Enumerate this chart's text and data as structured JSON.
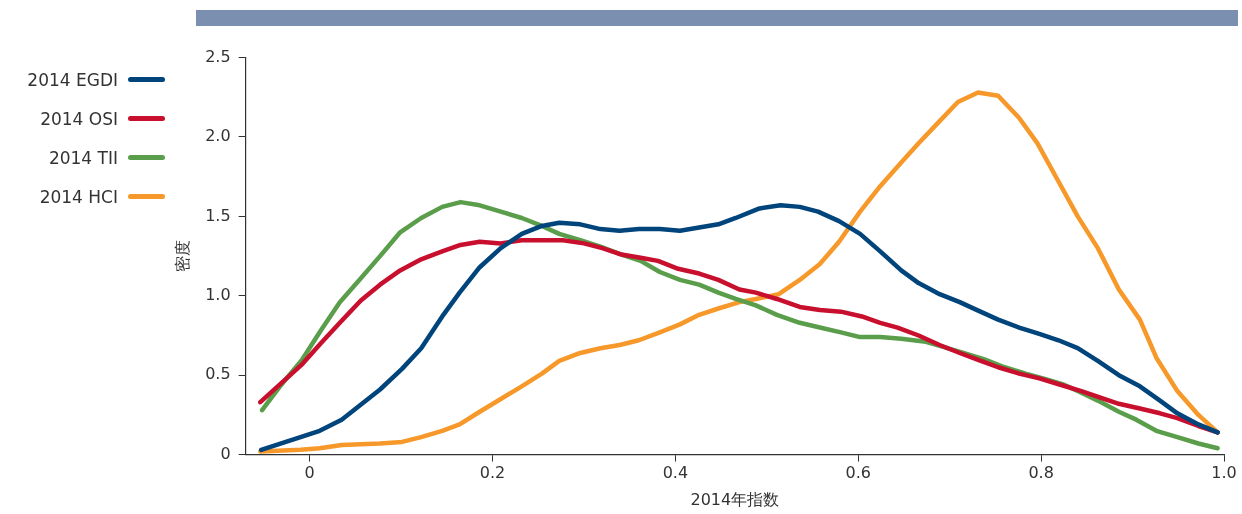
{
  "chart_data": {
    "type": "line",
    "xlabel": "2014年指数",
    "ylabel": "密度",
    "legend": "left",
    "grid": false,
    "marker": "none",
    "line_style": "solid",
    "xlim": [
      -0.07,
      1.0
    ],
    "xticks": [
      0,
      0.2,
      0.4,
      0.6,
      0.8,
      {
        "value": 1.0,
        "label": "1.0"
      }
    ],
    "ylim": [
      0,
      2.5
    ],
    "yticks": [
      0,
      0.5,
      {
        "value": 1.0,
        "label": "1.0"
      },
      1.5,
      {
        "value": 2.0,
        "label": "2.0"
      },
      2.5
    ],
    "series": [
      {
        "name": "2014 EGDI",
        "color": "#00447c",
        "x": [
          -0.053,
          -0.01,
          0.011,
          0.035,
          0.077,
          0.101,
          0.122,
          0.145,
          0.164,
          0.186,
          0.209,
          0.232,
          0.254,
          0.273,
          0.296,
          0.318,
          0.339,
          0.36,
          0.383,
          0.405,
          0.426,
          0.447,
          0.466,
          0.492,
          0.515,
          0.536,
          0.556,
          0.579,
          0.602,
          0.624,
          0.647,
          0.666,
          0.689,
          0.711,
          0.73,
          0.753,
          0.776,
          0.798,
          0.819,
          0.84,
          0.862,
          0.885,
          0.908,
          0.93,
          0.949,
          0.972,
          0.993
        ],
        "values": [
          0.03,
          0.11,
          0.15,
          0.22,
          0.41,
          0.54,
          0.67,
          0.87,
          1.02,
          1.18,
          1.3,
          1.39,
          1.44,
          1.46,
          1.45,
          1.42,
          1.41,
          1.42,
          1.42,
          1.41,
          1.43,
          1.45,
          1.49,
          1.55,
          1.57,
          1.56,
          1.53,
          1.47,
          1.39,
          1.28,
          1.16,
          1.08,
          1.01,
          0.96,
          0.91,
          0.85,
          0.8,
          0.76,
          0.72,
          0.67,
          0.59,
          0.5,
          0.43,
          0.34,
          0.26,
          0.19,
          0.14
        ]
      },
      {
        "name": "2014 OSI",
        "color": "#c8102e",
        "x": [
          -0.054,
          -0.031,
          -0.008,
          0.012,
          0.033,
          0.056,
          0.077,
          0.099,
          0.122,
          0.145,
          0.165,
          0.186,
          0.209,
          0.232,
          0.254,
          0.277,
          0.3,
          0.32,
          0.341,
          0.362,
          0.381,
          0.403,
          0.426,
          0.447,
          0.47,
          0.488,
          0.511,
          0.536,
          0.558,
          0.581,
          0.604,
          0.624,
          0.643,
          0.666,
          0.689,
          0.711,
          0.734,
          0.753,
          0.776,
          0.798,
          0.821,
          0.844,
          0.864,
          0.885,
          0.908,
          0.93,
          0.949,
          0.972,
          0.993
        ],
        "values": [
          0.33,
          0.45,
          0.57,
          0.7,
          0.83,
          0.97,
          1.07,
          1.16,
          1.23,
          1.28,
          1.32,
          1.34,
          1.33,
          1.35,
          1.35,
          1.35,
          1.33,
          1.3,
          1.26,
          1.24,
          1.22,
          1.17,
          1.14,
          1.1,
          1.04,
          1.02,
          0.98,
          0.93,
          0.91,
          0.9,
          0.87,
          0.83,
          0.8,
          0.75,
          0.69,
          0.64,
          0.59,
          0.55,
          0.51,
          0.48,
          0.44,
          0.4,
          0.36,
          0.32,
          0.29,
          0.26,
          0.23,
          0.18,
          0.14
        ]
      },
      {
        "name": "2014 TII",
        "color": "#5a9e4b",
        "x": [
          -0.052,
          -0.031,
          -0.008,
          0.012,
          0.033,
          0.056,
          0.077,
          0.099,
          0.122,
          0.145,
          0.165,
          0.186,
          0.209,
          0.232,
          0.254,
          0.273,
          0.296,
          0.318,
          0.341,
          0.362,
          0.383,
          0.405,
          0.426,
          0.447,
          0.466,
          0.488,
          0.511,
          0.536,
          0.558,
          0.581,
          0.602,
          0.624,
          0.647,
          0.674,
          0.692,
          0.715,
          0.738,
          0.76,
          0.783,
          0.802,
          0.825,
          0.844,
          0.862,
          0.885,
          0.904,
          0.926,
          0.949,
          0.972,
          0.993
        ],
        "values": [
          0.28,
          0.44,
          0.6,
          0.78,
          0.96,
          1.11,
          1.25,
          1.4,
          1.49,
          1.56,
          1.59,
          1.57,
          1.53,
          1.49,
          1.44,
          1.39,
          1.35,
          1.31,
          1.26,
          1.22,
          1.15,
          1.1,
          1.07,
          1.02,
          0.98,
          0.94,
          0.88,
          0.83,
          0.8,
          0.77,
          0.74,
          0.74,
          0.73,
          0.71,
          0.68,
          0.64,
          0.6,
          0.55,
          0.51,
          0.48,
          0.44,
          0.39,
          0.34,
          0.27,
          0.22,
          0.15,
          0.11,
          0.07,
          0.04
        ]
      },
      {
        "name": "2014 HCI",
        "color": "#f7992a",
        "x": [
          -0.054,
          -0.01,
          0.011,
          0.035,
          0.077,
          0.101,
          0.122,
          0.145,
          0.164,
          0.186,
          0.209,
          0.232,
          0.254,
          0.273,
          0.296,
          0.318,
          0.339,
          0.36,
          0.383,
          0.405,
          0.426,
          0.447,
          0.47,
          0.488,
          0.513,
          0.536,
          0.558,
          0.579,
          0.602,
          0.624,
          0.647,
          0.666,
          0.689,
          0.709,
          0.731,
          0.753,
          0.776,
          0.796,
          0.819,
          0.84,
          0.862,
          0.885,
          0.908,
          0.926,
          0.949,
          0.972,
          0.993
        ],
        "values": [
          0.02,
          0.03,
          0.04,
          0.06,
          0.07,
          0.08,
          0.11,
          0.15,
          0.19,
          0.27,
          0.35,
          0.43,
          0.51,
          0.59,
          0.64,
          0.67,
          0.69,
          0.72,
          0.77,
          0.82,
          0.88,
          0.92,
          0.96,
          0.98,
          1.01,
          1.1,
          1.2,
          1.34,
          1.53,
          1.69,
          1.84,
          1.96,
          2.1,
          2.22,
          2.28,
          2.26,
          2.12,
          1.96,
          1.72,
          1.5,
          1.3,
          1.04,
          0.85,
          0.61,
          0.4,
          0.25,
          0.14
        ]
      }
    ]
  }
}
